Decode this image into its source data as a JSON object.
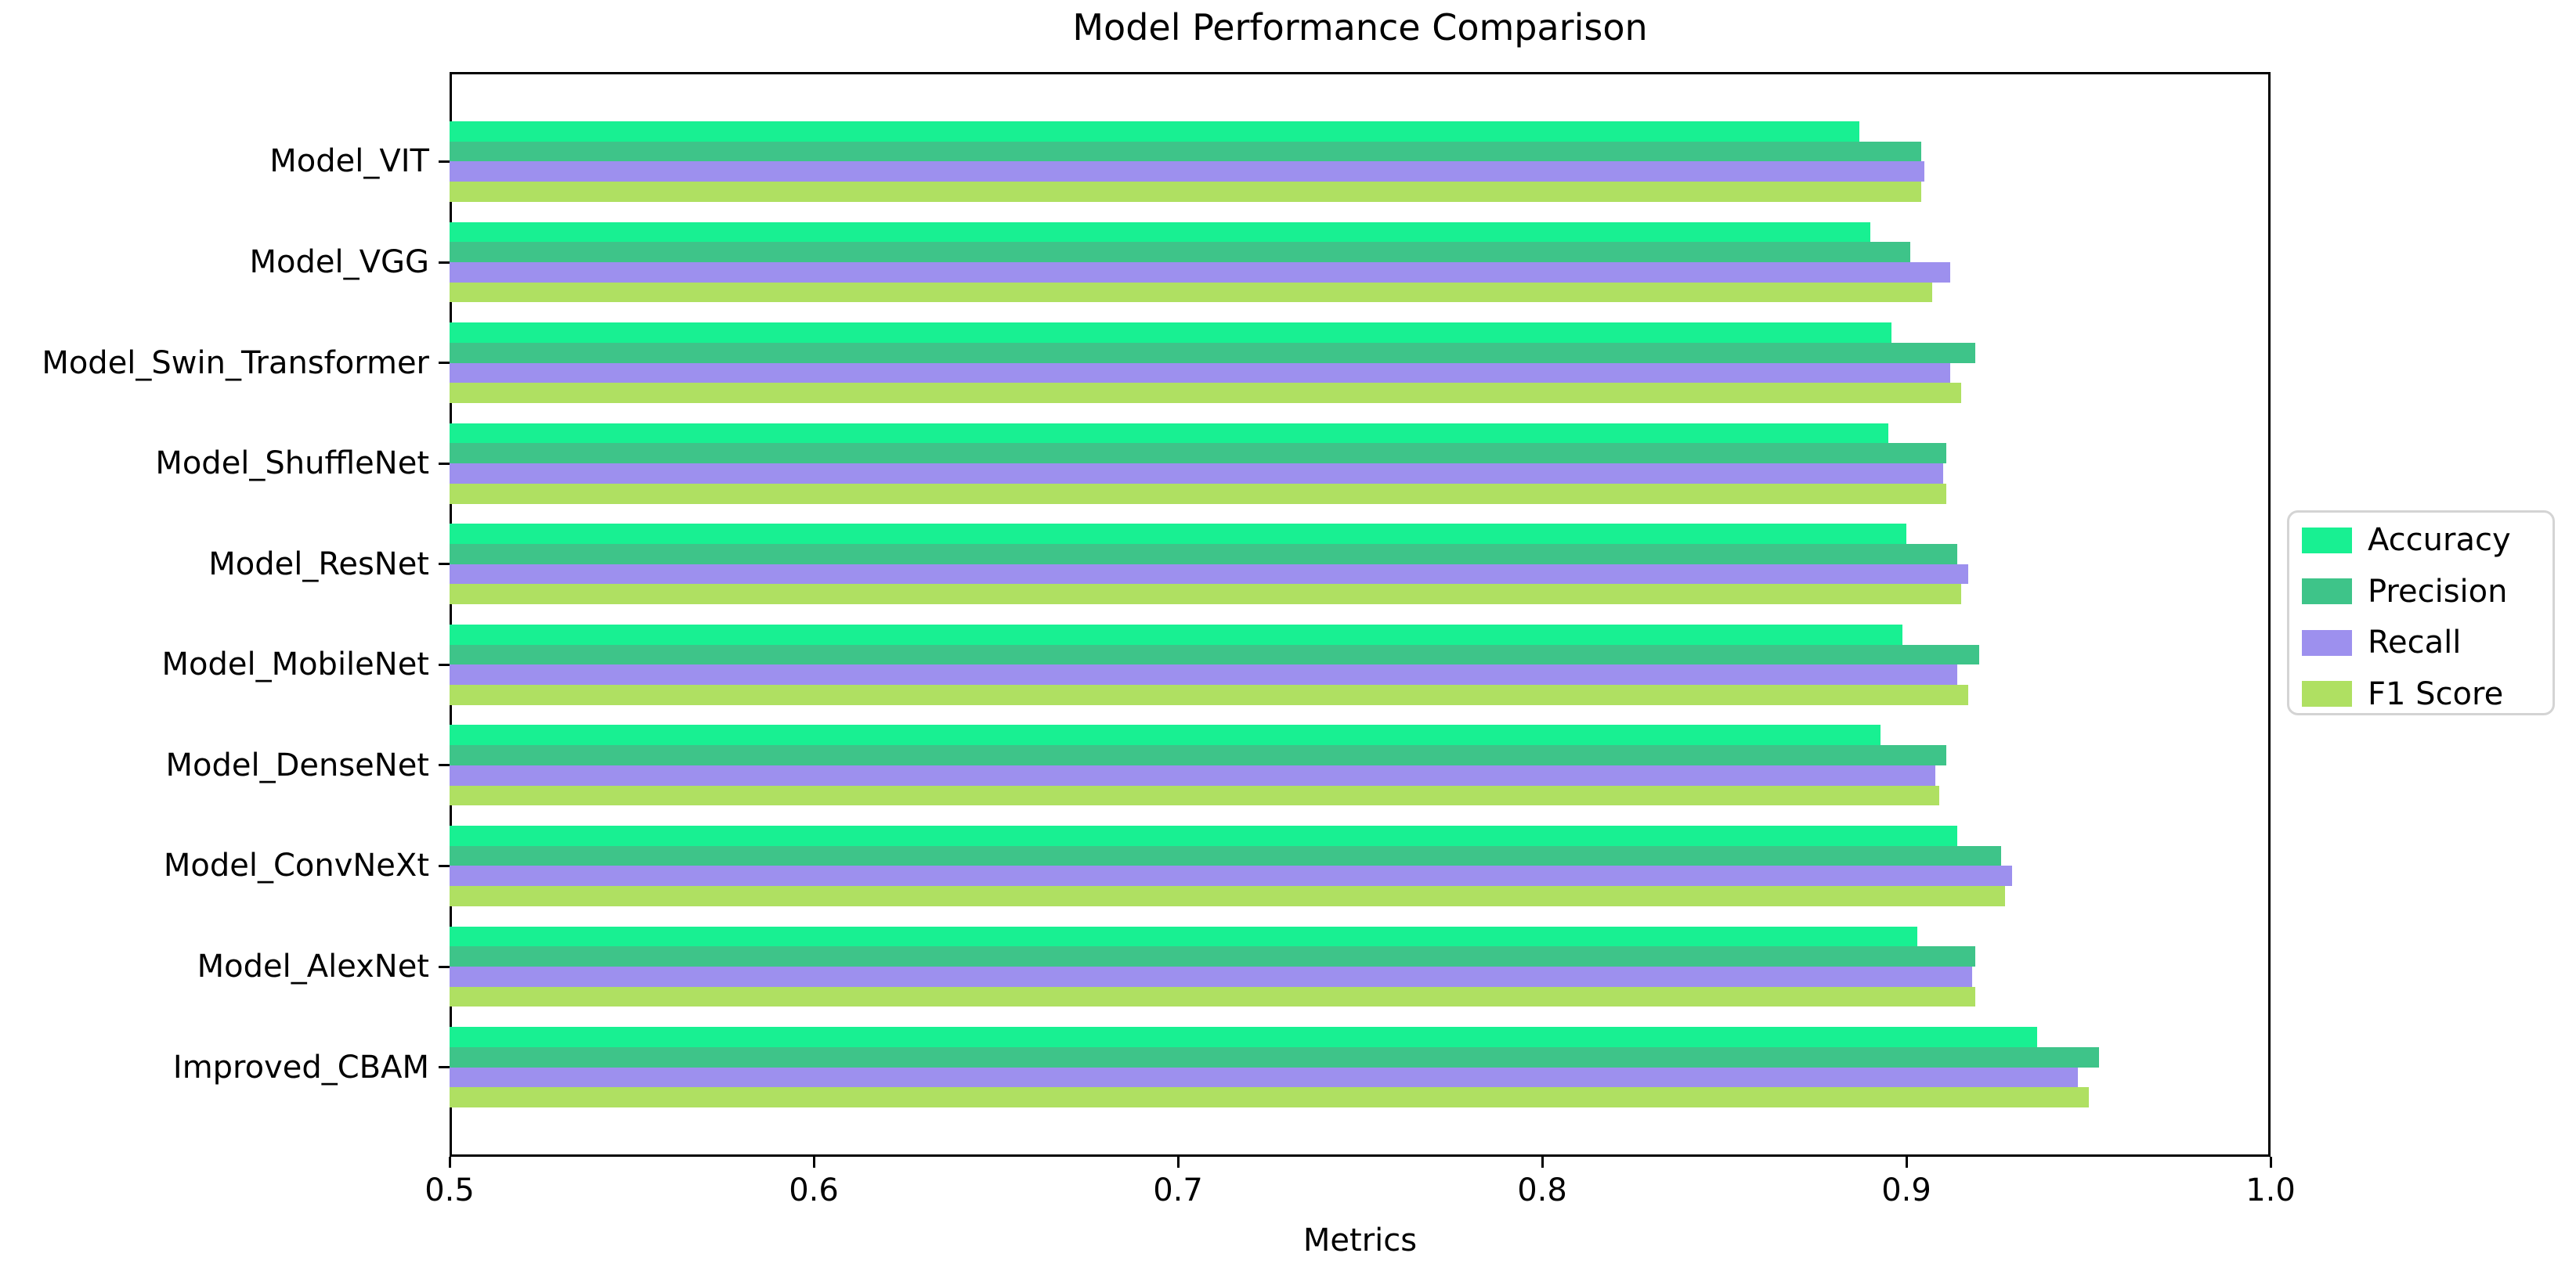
{
  "figure": {
    "title": "Model Performance Comparison",
    "xlabel": "Metrics"
  },
  "chart_data": {
    "type": "bar",
    "orientation": "horizontal",
    "title": "Model Performance Comparison",
    "xlabel": "Metrics",
    "ylabel": "",
    "xlim": [
      0.5,
      1.0
    ],
    "xticks": [
      0.5,
      0.6,
      0.7,
      0.8,
      0.9,
      1.0
    ],
    "xtick_labels": [
      "0.5",
      "0.6",
      "0.7",
      "0.8",
      "0.9",
      "1.0"
    ],
    "grid": false,
    "legend_position": "center-right-outside",
    "categories": [
      "Model_VIT",
      "Model_VGG",
      "Model_Swin_Transformer",
      "Model_ShuffleNet",
      "Model_ResNet",
      "Model_MobileNet",
      "Model_DenseNet",
      "Model_ConvNeXt",
      "Model_AlexNet",
      "Improved_CBAM"
    ],
    "series": [
      {
        "name": "Accuracy",
        "color": "#18F092",
        "values": [
          0.887,
          0.89,
          0.896,
          0.895,
          0.9,
          0.899,
          0.893,
          0.914,
          0.903,
          0.936
        ]
      },
      {
        "name": "Precision",
        "color": "#3EC489",
        "values": [
          0.904,
          0.901,
          0.919,
          0.911,
          0.914,
          0.92,
          0.911,
          0.926,
          0.919,
          0.953
        ]
      },
      {
        "name": "Recall",
        "color": "#9D90EE",
        "values": [
          0.905,
          0.912,
          0.912,
          0.91,
          0.917,
          0.914,
          0.908,
          0.929,
          0.918,
          0.947
        ]
      },
      {
        "name": "F1 Score",
        "color": "#AFE062",
        "values": [
          0.904,
          0.907,
          0.915,
          0.911,
          0.915,
          0.917,
          0.909,
          0.927,
          0.919,
          0.95
        ]
      }
    ]
  }
}
